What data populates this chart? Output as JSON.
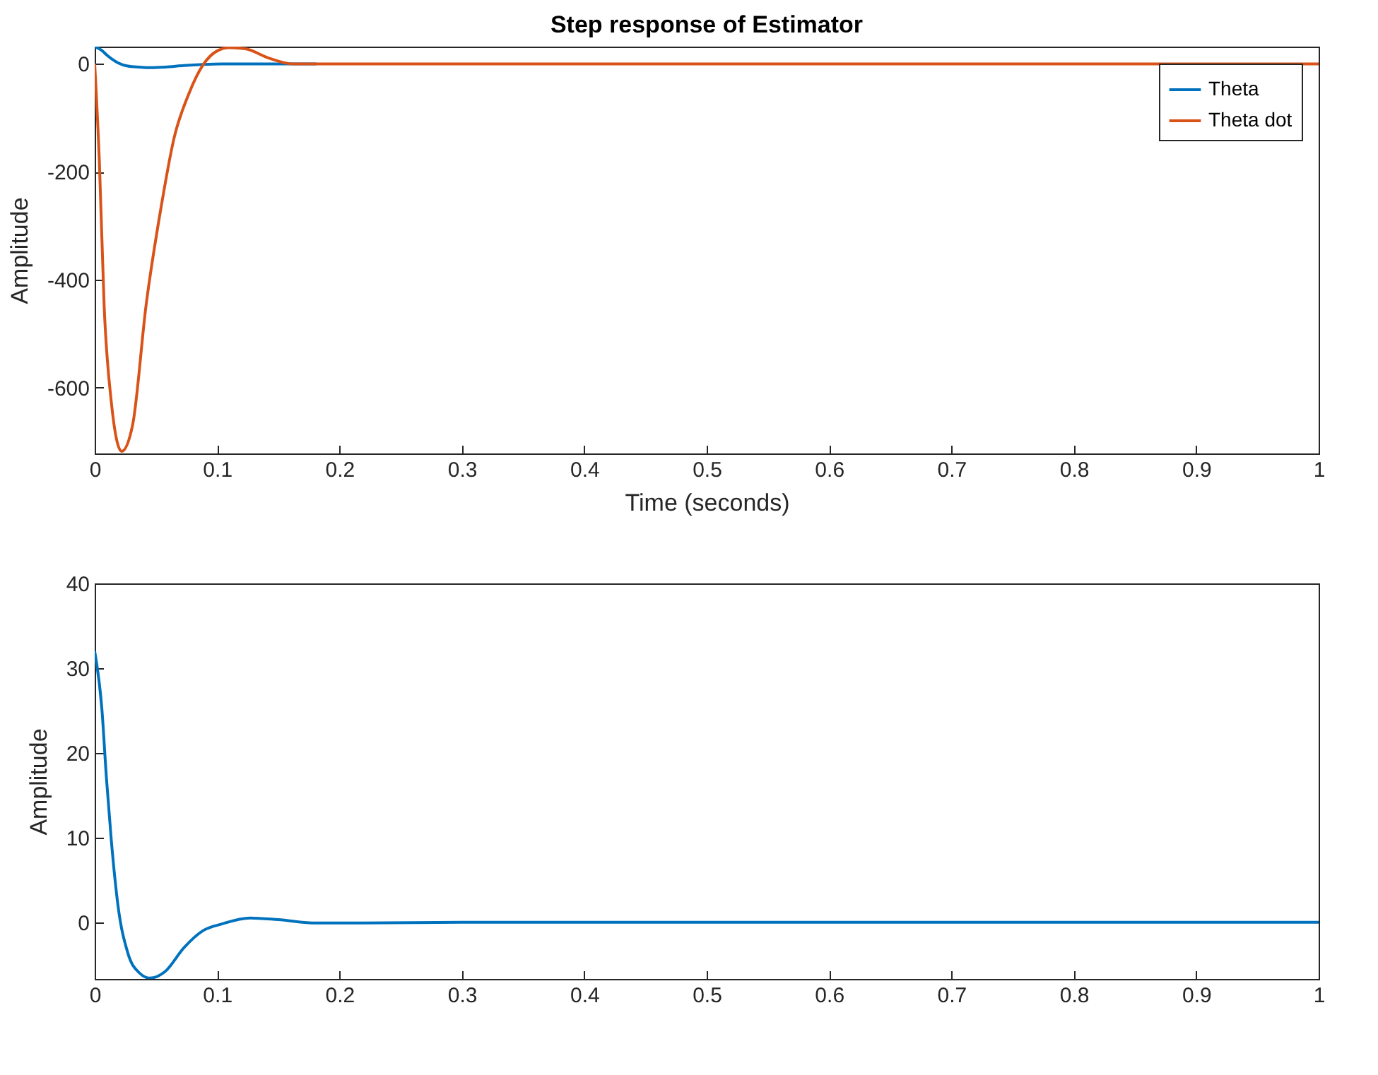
{
  "chart_data": [
    {
      "type": "line",
      "title": "Step response of Estimator",
      "xlabel": "Time (seconds)",
      "ylabel": "Amplitude",
      "xlim": [
        0,
        1
      ],
      "ylim": [
        -722,
        32
      ],
      "xticks": [
        0,
        0.1,
        0.2,
        0.3,
        0.4,
        0.5,
        0.6,
        0.7,
        0.8,
        0.9,
        1
      ],
      "yticks": [
        -600,
        -400,
        -200,
        0
      ],
      "grid": false,
      "legend": "top right",
      "marker": "none",
      "line_style": "solid",
      "series": [
        {
          "name": "Theta",
          "color": "#0072bd",
          "x": [
            0,
            0.0058,
            0.0096,
            0.0135,
            0.019,
            0.027,
            0.0366,
            0.045,
            0.0577,
            0.073,
            0.0885,
            0.104,
            0.127,
            0.15,
            0.181
          ],
          "values": [
            32,
            25,
            17,
            10,
            2,
            -4,
            -6,
            -7,
            -6,
            -3,
            -1,
            0,
            0,
            0,
            0
          ]
        },
        {
          "name": "Theta dot",
          "color": "#d95319",
          "x": [
            0,
            0.0038,
            0.0077,
            0.0135,
            0.022,
            0.031,
            0.042,
            0.054,
            0.065,
            0.077,
            0.0885,
            0.1,
            0.11,
            0.123,
            0.142,
            0.162,
            0.2,
            0.3,
            0.5,
            0.75,
            1
          ],
          "values": [
            0,
            -180,
            -447,
            -625,
            -718,
            -669,
            -447,
            -269,
            -136,
            -55,
            -2,
            24,
            30,
            28,
            11,
            0,
            0,
            0,
            0,
            0,
            0
          ]
        }
      ]
    },
    {
      "type": "line",
      "ylabel": "Amplitude",
      "xlim": [
        0,
        1
      ],
      "ylim": [
        -6.7,
        40
      ],
      "xticks": [
        0,
        0.1,
        0.2,
        0.3,
        0.4,
        0.5,
        0.6,
        0.7,
        0.8,
        0.9,
        1
      ],
      "yticks": [
        0,
        10,
        20,
        30,
        40
      ],
      "grid": false,
      "marker": "none",
      "line_style": "solid",
      "series": [
        {
          "color": "#0072bd",
          "x": [
            0,
            0.0058,
            0.0096,
            0.0135,
            0.019,
            0.027,
            0.0366,
            0.045,
            0.0577,
            0.073,
            0.0885,
            0.104,
            0.127,
            0.15,
            0.181,
            0.22,
            0.3,
            0.5,
            0.75,
            1
          ],
          "values": [
            32,
            25.3,
            17,
            9.8,
            2,
            -3.6,
            -6,
            -6.6,
            -5.8,
            -3,
            -1,
            -0.2,
            0.5,
            0.3,
            -0.1,
            -0.1,
            0,
            0,
            0,
            0
          ]
        }
      ]
    }
  ]
}
